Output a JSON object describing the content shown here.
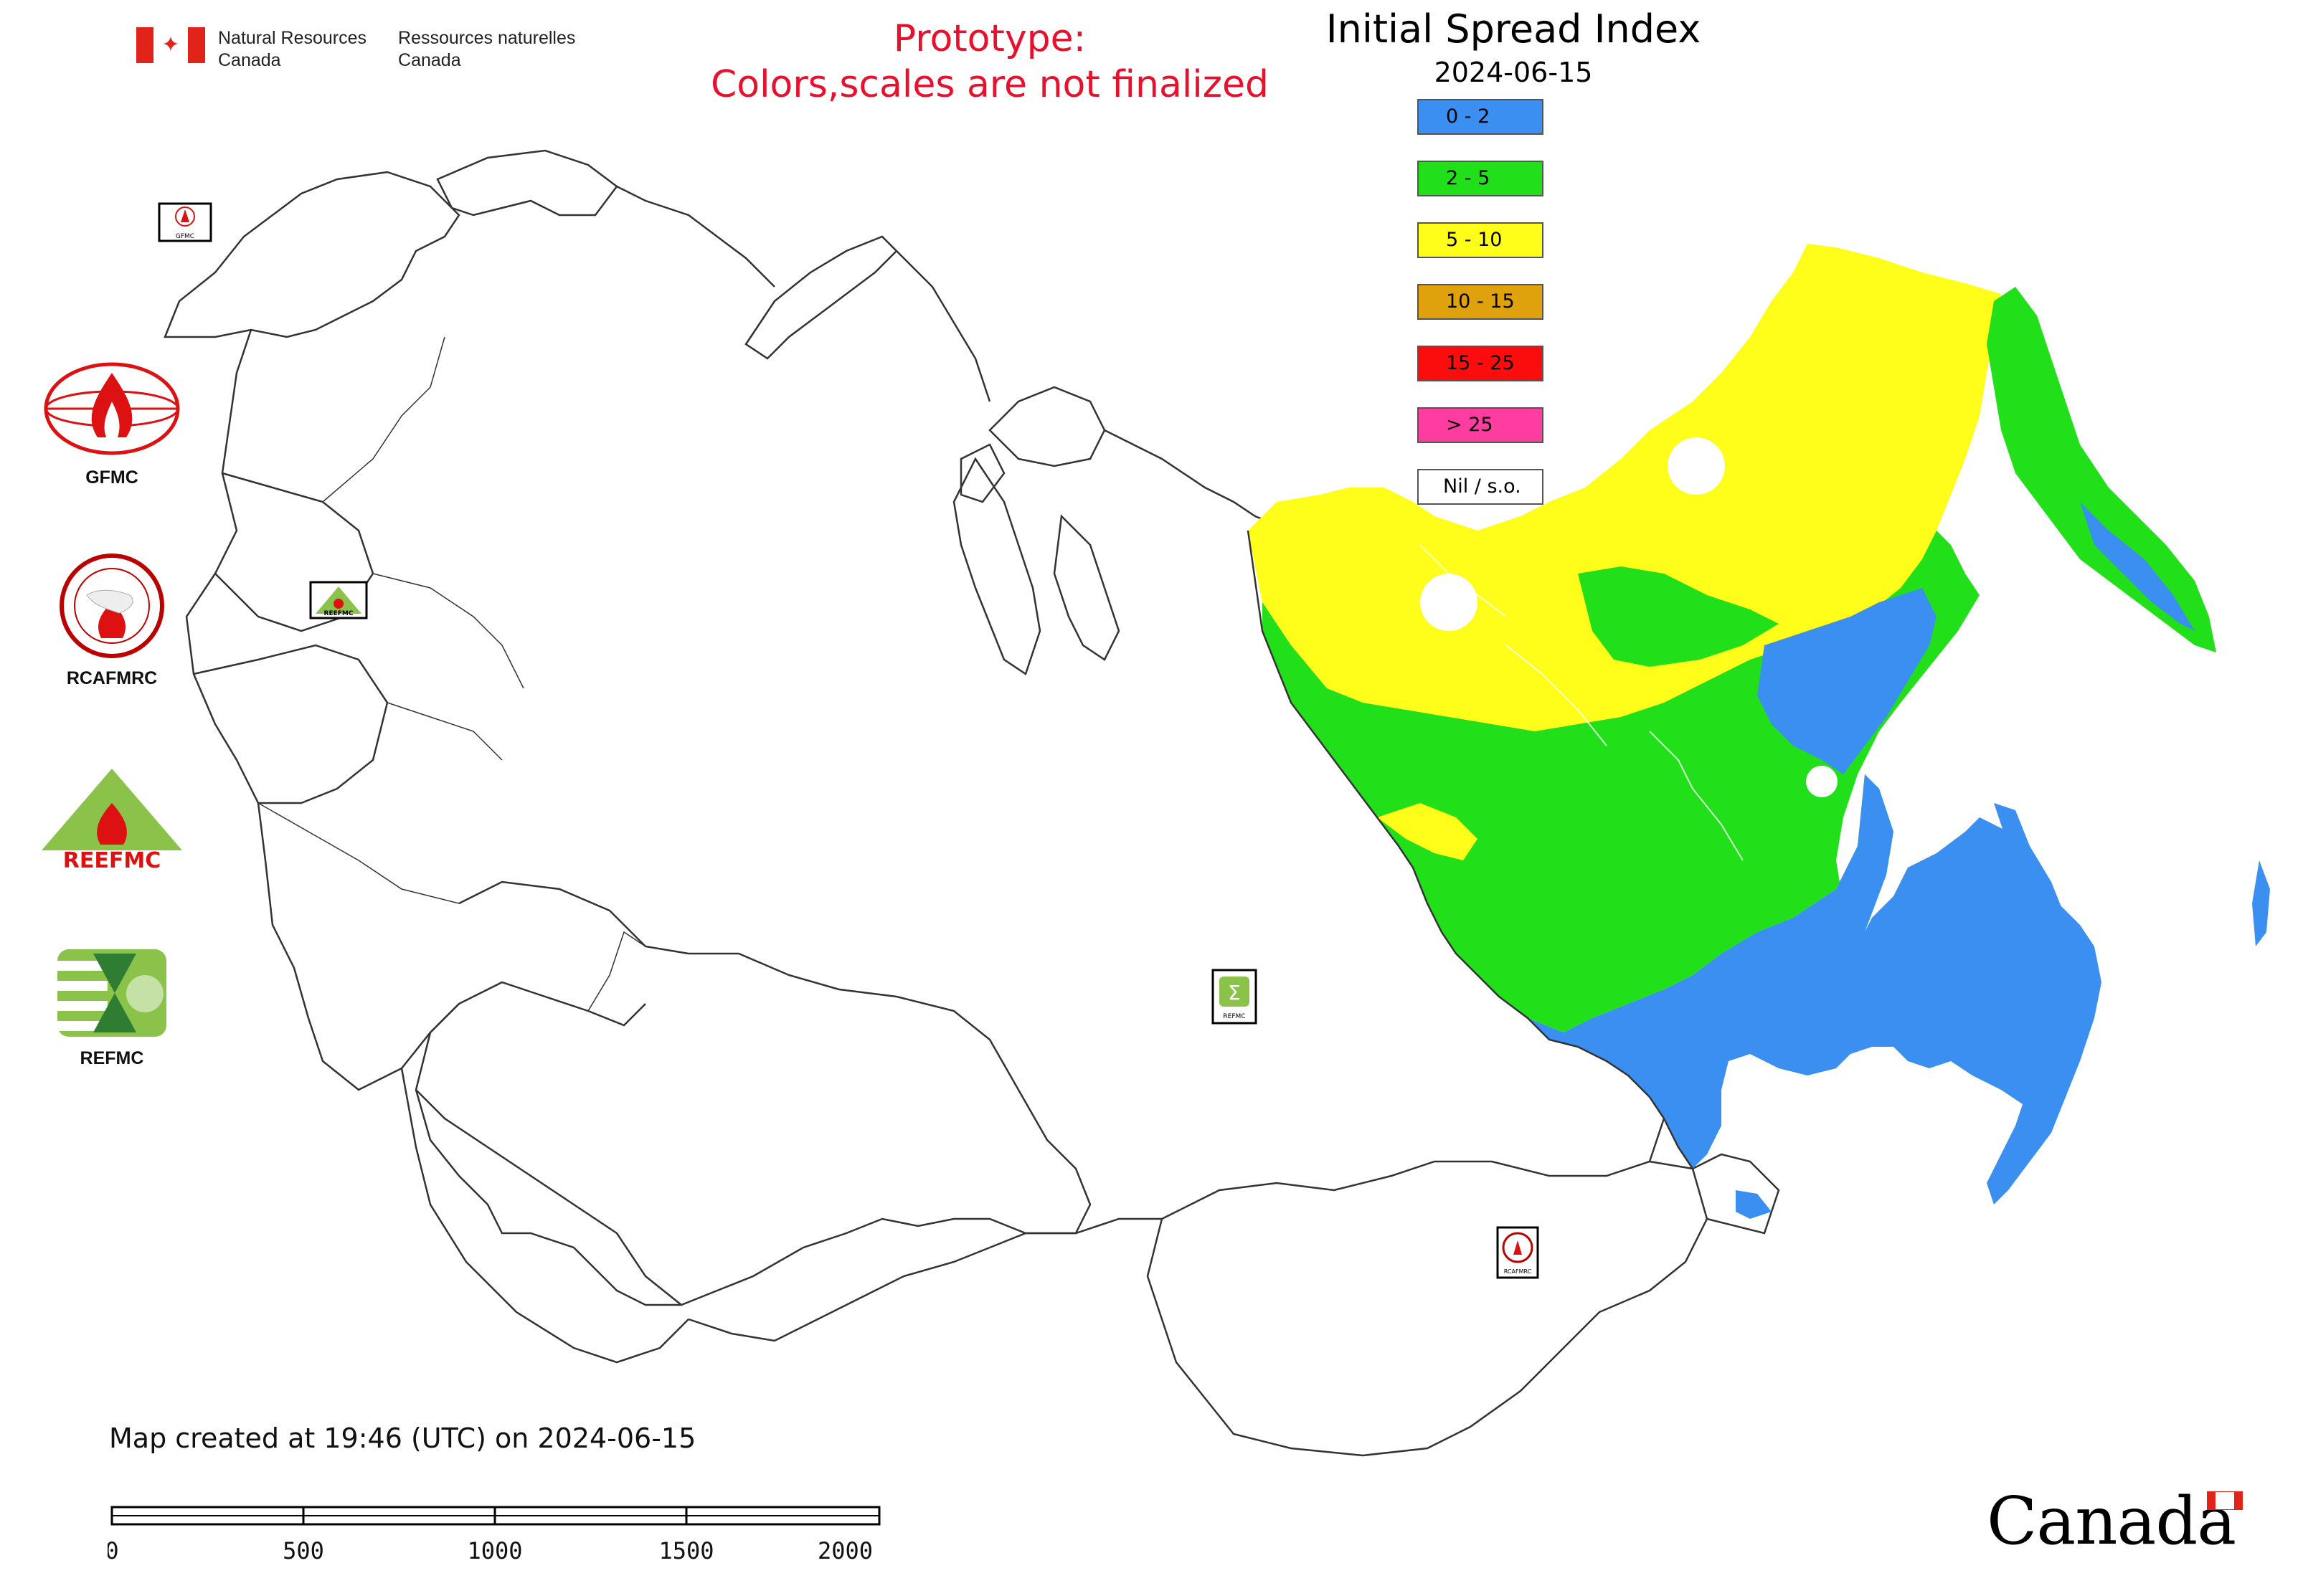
{
  "header": {
    "org_en_line1": "Natural Resources",
    "org_en_line2": "Canada",
    "org_fr_line1": "Ressources naturelles",
    "org_fr_line2": "Canada",
    "prototype_line1": "Prototype:",
    "prototype_line2": "Colors,scales are not finalized",
    "title": "Initial Spread Index",
    "date": "2024-06-15"
  },
  "legend": {
    "items": [
      {
        "label": "0 - 2",
        "color": "#3a8ff0"
      },
      {
        "label": "2 - 5",
        "color": "#21e01a"
      },
      {
        "label": "5 - 10",
        "color": "#fffd1a"
      },
      {
        "label": "10 - 15",
        "color": "#dfa10c"
      },
      {
        "label": "15 - 25",
        "color": "#fb0d0d"
      },
      {
        "label": "> 25",
        "color": "#ff3ca0"
      },
      {
        "label": "Nil / s.o.",
        "color": "#ffffff"
      }
    ]
  },
  "side_logos": [
    {
      "caption": "GFMC",
      "icon": "gfmc-flame-globe-icon"
    },
    {
      "caption": "RCAFMRC",
      "icon": "rcafmrc-seal-icon"
    },
    {
      "caption": "",
      "icon": "reefmc-triangle-icon",
      "wordmark": "REEFMC"
    },
    {
      "caption": "REFMC",
      "icon": "refmc-sigma-icon"
    }
  ],
  "map_logos": {
    "gfmc_small": "GFMC",
    "reefmc_small": "REEFMC",
    "refmc_small": "REFMC",
    "rcafmrc_small": "RCAFMRC"
  },
  "footer": {
    "created_note": "Map created at 19:46 (UTC) on 2024-06-15",
    "wordmark": "Canada"
  },
  "scale": {
    "ticks": [
      "0",
      "500",
      "1000",
      "1500",
      "2000 km"
    ]
  },
  "colors": {
    "nil": "#ffffff",
    "border": "#333333",
    "prototype_red": "#e8112d"
  }
}
